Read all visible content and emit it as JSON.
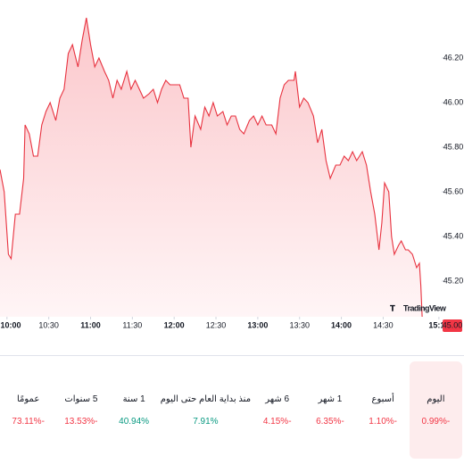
{
  "chart_data": {
    "type": "area",
    "watermark": "TradingView",
    "line_color": "#e8323f",
    "fill_top": "#fbc7cb",
    "fill_bottom": "#fff5f6",
    "x": [
      "09:55",
      "09:58",
      "10:01",
      "10:03",
      "10:06",
      "10:09",
      "10:12",
      "10:13",
      "10:16",
      "10:19",
      "10:22",
      "10:25",
      "10:28",
      "10:31",
      "10:35",
      "10:38",
      "10:41",
      "10:44",
      "10:47",
      "10:51",
      "10:54",
      "10:57",
      "11:00",
      "11:03",
      "11:06",
      "11:10",
      "11:13",
      "11:16",
      "11:19",
      "11:22",
      "11:26",
      "11:29",
      "11:32",
      "11:35",
      "11:38",
      "11:42",
      "11:45",
      "11:48",
      "11:51",
      "11:54",
      "11:57",
      "12:01",
      "12:04",
      "12:07",
      "12:10",
      "12:12",
      "12:15",
      "12:19",
      "12:22",
      "12:25",
      "12:28",
      "12:31",
      "12:35",
      "12:38",
      "12:41",
      "12:44",
      "12:47",
      "12:50",
      "12:54",
      "12:57",
      "13:00",
      "13:03",
      "13:06",
      "13:10",
      "13:13",
      "13:16",
      "13:19",
      "13:22",
      "13:26",
      "13:27",
      "13:30",
      "13:33",
      "13:36",
      "13:40",
      "13:43",
      "13:46",
      "13:49",
      "13:52",
      "13:56",
      "13:59",
      "14:02",
      "14:05",
      "14:08",
      "14:11",
      "14:15",
      "14:18",
      "14:21",
      "14:24",
      "14:27",
      "14:29",
      "14:31",
      "14:34",
      "14:36",
      "14:38",
      "14:41",
      "14:43",
      "14:46",
      "14:48",
      "14:51",
      "14:54",
      "14:56",
      "14:57",
      "14:58"
    ],
    "values": [
      45.7,
      45.6,
      45.32,
      45.3,
      45.5,
      45.5,
      45.66,
      45.9,
      45.86,
      45.76,
      45.76,
      45.9,
      45.96,
      46.0,
      45.92,
      46.02,
      46.06,
      46.22,
      46.26,
      46.16,
      46.28,
      46.38,
      46.26,
      46.16,
      46.2,
      46.14,
      46.1,
      46.02,
      46.1,
      46.06,
      46.14,
      46.06,
      46.1,
      46.06,
      46.02,
      46.04,
      46.06,
      46.0,
      46.06,
      46.1,
      46.08,
      46.08,
      46.08,
      46.02,
      46.02,
      45.8,
      45.94,
      45.88,
      45.98,
      45.94,
      46.0,
      45.94,
      45.96,
      45.9,
      45.94,
      45.94,
      45.88,
      45.86,
      45.92,
      45.94,
      45.9,
      45.94,
      45.9,
      45.9,
      45.86,
      46.02,
      46.08,
      46.1,
      46.1,
      46.14,
      45.98,
      46.02,
      46.0,
      45.94,
      45.82,
      45.88,
      45.74,
      45.66,
      45.72,
      45.72,
      45.76,
      45.74,
      45.78,
      45.74,
      45.78,
      45.72,
      45.6,
      45.5,
      45.34,
      45.46,
      45.64,
      45.6,
      45.4,
      45.32,
      45.36,
      45.38,
      45.34,
      45.34,
      45.32,
      45.26,
      45.28,
      45.18,
      45.04
    ],
    "xlim": [
      "09:55",
      "15:12"
    ],
    "xticks": [
      "10:00",
      "10:30",
      "11:00",
      "11:30",
      "12:00",
      "12:30",
      "13:00",
      "13:30",
      "14:00",
      "14:30",
      "15:10"
    ],
    "ylim": [
      45.04,
      46.46
    ],
    "yticks": [
      {
        "value": 45.2,
        "label": "45.20"
      },
      {
        "value": 45.4,
        "label": "45.40"
      },
      {
        "value": 45.6,
        "label": "45.60"
      },
      {
        "value": 45.8,
        "label": "45.80"
      },
      {
        "value": 46.0,
        "label": "46.00"
      },
      {
        "value": 46.2,
        "label": "46.20"
      }
    ],
    "price_label": {
      "value": 45.0,
      "label": "45.00"
    },
    "price_color": "#f23645"
  },
  "performance": {
    "selected_index": 0,
    "selected_bg": "#fdeced",
    "items": [
      {
        "period": "اليوم",
        "change": "-0.99%",
        "color": "#f23645"
      },
      {
        "period": "أسبوع",
        "change": "-1.10%",
        "color": "#f23645"
      },
      {
        "period": "1 شهر",
        "change": "-6.35%",
        "color": "#f23645"
      },
      {
        "period": "6 شهر",
        "change": "-4.15%",
        "color": "#f23645"
      },
      {
        "period": "منذ بداية العام حتى اليوم",
        "change": "7.91%",
        "color": "#089981"
      },
      {
        "period": "1 سنة",
        "change": "40.94%",
        "color": "#089981"
      },
      {
        "period": "5 سنوات",
        "change": "-13.53%",
        "color": "#f23645"
      },
      {
        "period": "عمومًا",
        "change": "-73.11%",
        "color": "#f23645"
      }
    ]
  }
}
